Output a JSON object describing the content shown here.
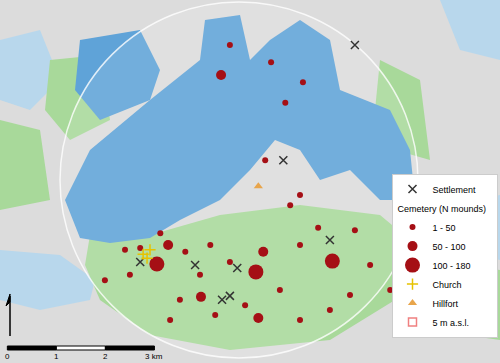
{
  "chart_data": {
    "type": "map",
    "tick_labels": false,
    "grid": false,
    "legend": "bottom right",
    "xlim": [
      0,
      10.2
    ],
    "ylim": [
      0,
      7.41
    ],
    "scale_bar": {
      "ticks": [
        0,
        1,
        2,
        {
          "value": 3,
          "label": "3 km"
        }
      ]
    },
    "series": [
      {
        "name": "Settlement",
        "marker": "x",
        "color": "#333333",
        "x": [
          5.78,
          6.73,
          4.84,
          4.69,
          4.53,
          2.86,
          3.98,
          7.24
        ],
        "y": [
          4.14,
          2.51,
          1.94,
          1.37,
          1.29,
          2.06,
          2.0,
          6.49
        ]
      },
      {
        "name": "1 - 50",
        "group": "Cemetery (N mounds)",
        "marker": "circle",
        "color": "#a50f15",
        "x": [
          4.69,
          5.53,
          6.18,
          5.82,
          5.41,
          6.12,
          2.86,
          2.55,
          3.78,
          4.29,
          4.69,
          6.12,
          6.49,
          7.24,
          7.55,
          7.96,
          3.67,
          4.39,
          5.0,
          5.71,
          6.12,
          6.73,
          7.14,
          3.47,
          2.65,
          2.14,
          4.08,
          5.92,
          3.27
        ],
        "y": [
          6.49,
          6.14,
          5.73,
          5.31,
          4.14,
          3.43,
          2.35,
          2.31,
          2.27,
          2.41,
          2.06,
          2.41,
          2.76,
          2.71,
          2.0,
          1.49,
          1.29,
          0.98,
          1.18,
          1.49,
          0.88,
          1.08,
          1.39,
          0.88,
          1.8,
          1.69,
          1.8,
          3.22,
          2.65
        ]
      },
      {
        "name": "50 - 100",
        "group": "Cemetery (N mounds)",
        "marker": "circle",
        "color": "#a50f15",
        "x": [
          4.51,
          5.37,
          5.27,
          4.1,
          3.43
        ],
        "y": [
          5.88,
          2.27,
          0.92,
          1.35,
          2.41
        ]
      },
      {
        "name": "100 - 180",
        "group": "Cemetery (N mounds)",
        "marker": "circle",
        "color": "#a50f15",
        "x": [
          3.2,
          5.22,
          6.78
        ],
        "y": [
          2.02,
          1.86,
          2.08
        ]
      },
      {
        "name": "Church",
        "marker": "cross",
        "color": "#e6c200",
        "x": [
          2.92,
          3.06,
          3.0
        ],
        "y": [
          2.22,
          2.31,
          2.14
        ]
      },
      {
        "name": "Hillfort",
        "marker": "triangle-up",
        "color": "#e8a54b",
        "x": [
          5.27
        ],
        "y": [
          3.61
        ]
      },
      {
        "name": "5 m a.s.l.",
        "marker": "square-open",
        "color": "#f08080",
        "x": [
          null
        ],
        "y": [
          null
        ]
      }
    ]
  }
}
